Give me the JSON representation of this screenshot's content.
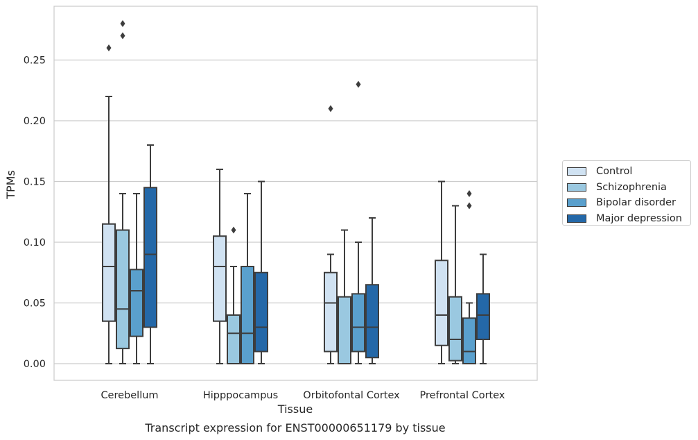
{
  "chart_data": {
    "type": "box",
    "xlabel": "Tissue",
    "ylabel": "TPMs",
    "caption": "Transcript expression for ENST00000651179 by tissue",
    "ylim": [
      -0.013,
      0.295
    ],
    "yticks": [
      0.0,
      0.05,
      0.1,
      0.15,
      0.2,
      0.25
    ],
    "ytick_labels": [
      "0.00",
      "0.05",
      "0.10",
      "0.15",
      "0.20",
      "0.25"
    ],
    "grid": "horizontal",
    "legend_position": "right",
    "categories": [
      "Cerebellum",
      "Hipppocampus",
      "Orbitofontal Cortex",
      "Prefrontal Cortex"
    ],
    "series": [
      {
        "name": "Control",
        "color": "#d0e2f2",
        "boxes": [
          {
            "whislo": 0.0,
            "q1": 0.035,
            "med": 0.08,
            "q3": 0.115,
            "whishi": 0.22,
            "fliers": [
              0.26
            ]
          },
          {
            "whislo": 0.0,
            "q1": 0.035,
            "med": 0.08,
            "q3": 0.105,
            "whishi": 0.16,
            "fliers": []
          },
          {
            "whislo": 0.0,
            "q1": 0.01,
            "med": 0.05,
            "q3": 0.075,
            "whishi": 0.09,
            "fliers": [
              0.21
            ]
          },
          {
            "whislo": 0.0,
            "q1": 0.015,
            "med": 0.04,
            "q3": 0.085,
            "whishi": 0.15,
            "fliers": []
          }
        ]
      },
      {
        "name": "Schizophrenia",
        "color": "#9ac8e0",
        "boxes": [
          {
            "whislo": 0.0,
            "q1": 0.0125,
            "med": 0.045,
            "q3": 0.11,
            "whishi": 0.14,
            "fliers": [
              0.27,
              0.28
            ]
          },
          {
            "whislo": 0.0,
            "q1": 0.0,
            "med": 0.025,
            "q3": 0.04,
            "whishi": 0.08,
            "fliers": [
              0.11
            ]
          },
          {
            "whislo": 0.0,
            "q1": 0.0,
            "med": 0.0,
            "q3": 0.055,
            "whishi": 0.11,
            "fliers": []
          },
          {
            "whislo": 0.0,
            "q1": 0.0025,
            "med": 0.02,
            "q3": 0.055,
            "whishi": 0.13,
            "fliers": []
          }
        ]
      },
      {
        "name": "Bipolar disorder",
        "color": "#5aa0cd",
        "boxes": [
          {
            "whislo": 0.0,
            "q1": 0.0225,
            "med": 0.06,
            "q3": 0.0775,
            "whishi": 0.14,
            "fliers": []
          },
          {
            "whislo": 0.0,
            "q1": 0.0,
            "med": 0.025,
            "q3": 0.08,
            "whishi": 0.14,
            "fliers": []
          },
          {
            "whislo": 0.0,
            "q1": 0.01,
            "med": 0.03,
            "q3": 0.0575,
            "whishi": 0.1,
            "fliers": [
              0.23
            ]
          },
          {
            "whislo": 0.0,
            "q1": 0.0,
            "med": 0.01,
            "q3": 0.0375,
            "whishi": 0.05,
            "fliers": [
              0.13,
              0.14
            ]
          }
        ]
      },
      {
        "name": "Major depression",
        "color": "#2468a8",
        "boxes": [
          {
            "whislo": 0.0,
            "q1": 0.03,
            "med": 0.09,
            "q3": 0.145,
            "whishi": 0.18,
            "fliers": []
          },
          {
            "whislo": 0.0,
            "q1": 0.01,
            "med": 0.03,
            "q3": 0.075,
            "whishi": 0.15,
            "fliers": []
          },
          {
            "whislo": 0.0,
            "q1": 0.005,
            "med": 0.03,
            "q3": 0.065,
            "whishi": 0.12,
            "fliers": []
          },
          {
            "whislo": 0.0,
            "q1": 0.02,
            "med": 0.04,
            "q3": 0.0575,
            "whishi": 0.09,
            "fliers": []
          }
        ]
      }
    ]
  }
}
